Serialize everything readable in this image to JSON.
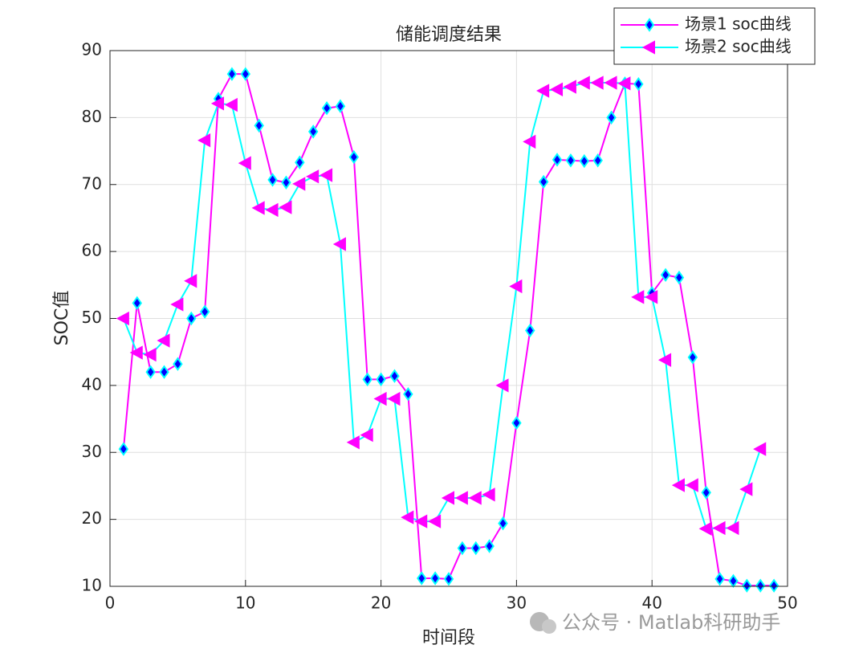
{
  "chart_data": {
    "type": "line",
    "title": "储能调度结果",
    "x_label": "时间段",
    "y_label": "SOC值",
    "annotation": "公众号 · Matlab科研助手",
    "xlim": [
      0,
      50
    ],
    "xticks": [
      0,
      10,
      20,
      30,
      40,
      50
    ],
    "ylim": [
      10,
      90
    ],
    "yticks": [
      10,
      20,
      30,
      40,
      50,
      60,
      70,
      80,
      90
    ],
    "grid": true,
    "legend": "northeast",
    "series": [
      {
        "name": "场景1 soc曲线",
        "color": "#ff00ff",
        "marker": "diamond",
        "marker_face": "#0000ff",
        "marker_edge": "#00ffff",
        "x": [
          1,
          2,
          3,
          4,
          5,
          6,
          7,
          8,
          9,
          10,
          11,
          12,
          13,
          14,
          15,
          16,
          17,
          18,
          19,
          20,
          21,
          22,
          23,
          24,
          25,
          26,
          27,
          28,
          29,
          30,
          31,
          32,
          33,
          34,
          35,
          36,
          37,
          38,
          39,
          40,
          41,
          42,
          43,
          44,
          45,
          46,
          47,
          48,
          49
        ],
        "values": [
          30.5,
          52.3,
          42,
          42,
          43.2,
          50,
          51,
          82.8,
          86.5,
          86.5,
          78.8,
          70.7,
          70.3,
          73.3,
          77.9,
          81.4,
          81.7,
          74.1,
          40.9,
          40.9,
          41.4,
          38.7,
          11.2,
          11.2,
          11.1,
          15.7,
          15.7,
          16,
          19.4,
          34.4,
          48.2,
          70.4,
          73.7,
          73.6,
          73.5,
          73.6,
          80,
          85.1,
          85,
          53.8,
          56.5,
          56.1,
          44.2,
          24,
          11.1,
          10.8,
          10.1,
          10.1,
          10.1
        ]
      },
      {
        "name": "场景2 soc曲线",
        "color": "#00ffff",
        "marker": "triangle-left",
        "marker_face": "#ff00ff",
        "marker_edge": "#ff00ff",
        "x": [
          1,
          2,
          3,
          4,
          5,
          6,
          7,
          8,
          9,
          10,
          11,
          12,
          13,
          14,
          15,
          16,
          17,
          18,
          19,
          20,
          21,
          22,
          23,
          24,
          25,
          26,
          27,
          28,
          29,
          30,
          31,
          32,
          33,
          34,
          35,
          36,
          37,
          38,
          39,
          40,
          41,
          42,
          43,
          44,
          45,
          46,
          47,
          48
        ],
        "values": [
          50,
          44.9,
          44.6,
          46.7,
          52.1,
          55.6,
          76.6,
          82.1,
          81.9,
          73.2,
          66.5,
          66.2,
          66.6,
          70.1,
          71.2,
          71.4,
          61.1,
          31.5,
          32.6,
          38,
          38,
          20.3,
          19.7,
          19.7,
          23.2,
          23.2,
          23.2,
          23.7,
          40,
          54.8,
          76.4,
          84,
          84.2,
          84.6,
          85.2,
          85.2,
          85.2,
          85.1,
          53.2,
          53.2,
          43.8,
          25.1,
          25.1,
          18.6,
          18.7,
          18.7,
          24.5,
          30.5
        ]
      }
    ]
  }
}
